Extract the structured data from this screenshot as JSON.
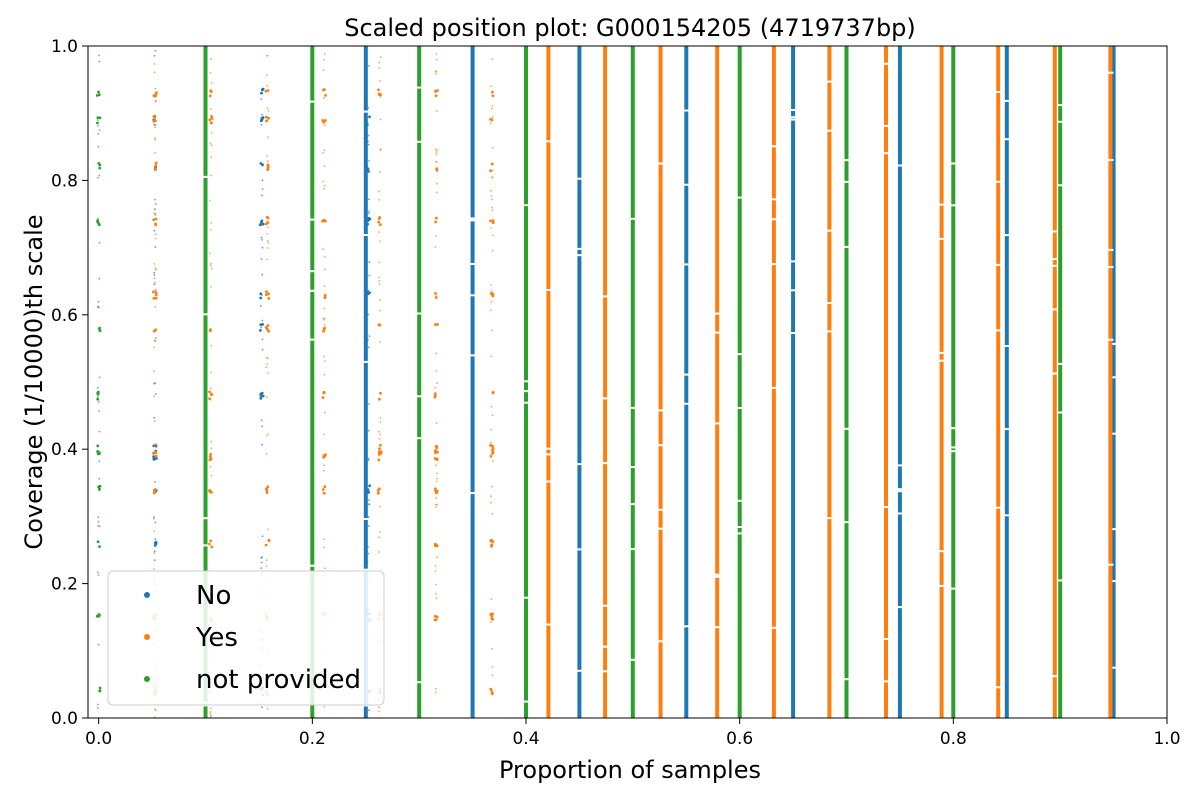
{
  "chart_data": {
    "type": "scatter",
    "title": "Scaled position plot: G000154205 (4719737bp)",
    "xlabel": "Proportion of samples",
    "ylabel": "Coverage (1/10000)th scale",
    "xlim": [
      -0.01,
      1.0
    ],
    "ylim": [
      0.0,
      1.0
    ],
    "xticks": [
      "0.0",
      "0.2",
      "0.4",
      "0.6",
      "0.8",
      "1.0"
    ],
    "yticks": [
      "0.0",
      "0.2",
      "0.4",
      "0.6",
      "0.8",
      "1.0"
    ],
    "grid": false,
    "legend_position": "lower-left",
    "series": [
      {
        "name": "No",
        "color": "#1f77b4",
        "solid_columns": [
          0.25,
          0.35,
          0.45,
          0.55,
          0.65,
          0.75,
          0.85,
          0.95
        ],
        "sparse_columns": [
          0.0526,
          0.1526,
          0.2526
        ]
      },
      {
        "name": "Yes",
        "color": "#ff7f0e",
        "solid_columns": [
          0.421,
          0.474,
          0.526,
          0.579,
          0.632,
          0.684,
          0.737,
          0.789,
          0.842,
          0.895,
          0.947
        ],
        "sparse_columns": [
          0.0526,
          0.105,
          0.158,
          0.211,
          0.263,
          0.316,
          0.368
        ]
      },
      {
        "name": "not provided",
        "color": "#2ca02c",
        "solid_columns": [
          0.1,
          0.2,
          0.3,
          0.4,
          0.5,
          0.6,
          0.7,
          0.8,
          0.9
        ],
        "sparse_columns": [
          0.0
        ]
      }
    ],
    "cluster_levels": [
      0.04,
      0.15,
      0.26,
      0.34,
      0.39,
      0.4,
      0.48,
      0.58,
      0.63,
      0.74,
      0.82,
      0.89,
      0.93
    ]
  }
}
